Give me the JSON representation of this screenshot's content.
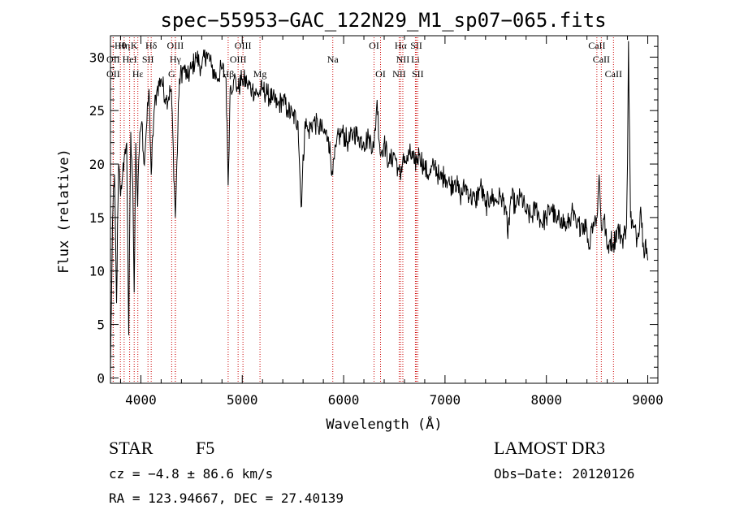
{
  "chart_data": {
    "type": "line",
    "title": "spec−55953−GAC_122N29_M1_sp07−065.fits",
    "xlabel": "Wavelength (Å)",
    "ylabel": "Flux (relative)",
    "xlim": [
      3700,
      9100
    ],
    "ylim": [
      -0.5,
      32
    ],
    "xticks": [
      4000,
      5000,
      6000,
      7000,
      8000,
      9000
    ],
    "yticks": [
      0,
      5,
      10,
      15,
      20,
      25,
      30
    ],
    "minor_x_step": 200,
    "minor_y_step": 1,
    "spectrum": {
      "name": "flux",
      "color": "#000000",
      "x": [
        3700,
        3720,
        3740,
        3760,
        3780,
        3800,
        3820,
        3840,
        3860,
        3880,
        3900,
        3920,
        3934,
        3950,
        3968,
        3990,
        4010,
        4030,
        4060,
        4080,
        4102,
        4130,
        4160,
        4200,
        4250,
        4300,
        4340,
        4380,
        4420,
        4460,
        4500,
        4550,
        4600,
        4650,
        4700,
        4750,
        4800,
        4840,
        4861,
        4880,
        4920,
        4960,
        5000,
        5050,
        5100,
        5150,
        5200,
        5250,
        5300,
        5350,
        5400,
        5450,
        5500,
        5550,
        5580,
        5620,
        5650,
        5700,
        5750,
        5800,
        5850,
        5893,
        5930,
        5980,
        6050,
        6100,
        6150,
        6200,
        6250,
        6300,
        6330,
        6360,
        6400,
        6450,
        6500,
        6540,
        6563,
        6590,
        6620,
        6650,
        6700,
        6750,
        6800,
        6850,
        6900,
        6950,
        7000,
        7050,
        7100,
        7150,
        7200,
        7250,
        7300,
        7350,
        7400,
        7450,
        7500,
        7550,
        7600,
        7620,
        7650,
        7700,
        7750,
        7800,
        7850,
        7900,
        7950,
        8000,
        8050,
        8100,
        8150,
        8200,
        8250,
        8300,
        8350,
        8400,
        8420,
        8450,
        8500,
        8520,
        8542,
        8570,
        8600,
        8630,
        8662,
        8700,
        8750,
        8790,
        8800,
        8810,
        8830,
        8860,
        8900,
        8930,
        8960,
        8980,
        9000
      ],
      "y": [
        0.5,
        14.5,
        19,
        7,
        20,
        17,
        19,
        21,
        22,
        4,
        23,
        18,
        8,
        22,
        16,
        23,
        24,
        20,
        24,
        27,
        19,
        25,
        27,
        28,
        26,
        27,
        15,
        28,
        29,
        28,
        29,
        30,
        29,
        30.5,
        29,
        28,
        29,
        28,
        18,
        27,
        28,
        27,
        28,
        27.5,
        27,
        26.5,
        27,
        26.5,
        26,
        25.5,
        26,
        25,
        24.5,
        24,
        16,
        24,
        23,
        24,
        23.5,
        23,
        22.5,
        19,
        22,
        23,
        22,
        23,
        22.5,
        22,
        22.5,
        21.5,
        26,
        21,
        22,
        20,
        21,
        19.5,
        18.5,
        21,
        20,
        21,
        20,
        21,
        19.5,
        19,
        20,
        18.5,
        19,
        18,
        18.5,
        17,
        18,
        17,
        16.5,
        18,
        16,
        17,
        16.5,
        17,
        16,
        13,
        17,
        16,
        17,
        15.5,
        15,
        16,
        14.5,
        15,
        16,
        14.5,
        15,
        14,
        15.5,
        14,
        14.5,
        14,
        12,
        14.5,
        15,
        19,
        14,
        15,
        12,
        13,
        12.5,
        14,
        13,
        14,
        20,
        31.5,
        15,
        14,
        13,
        16,
        12,
        13,
        11
      ]
    },
    "line_markers": [
      {
        "label": "Hθ",
        "x": 3798,
        "row": 0
      },
      {
        "label": "Hη",
        "x": 3835,
        "row": 0
      },
      {
        "label": "K",
        "x": 3934,
        "row": 0
      },
      {
        "label": "Hδ",
        "x": 4102,
        "row": 0
      },
      {
        "label": "OIII",
        "x": 4340,
        "row": 0
      },
      {
        "label": "OIII",
        "x": 5007,
        "row": 0
      },
      {
        "label": "OI",
        "x": 6300,
        "row": 0
      },
      {
        "label": "Hα",
        "x": 6563,
        "row": 0
      },
      {
        "label": "SII",
        "x": 6717,
        "row": 0
      },
      {
        "label": "CaII",
        "x": 8498,
        "row": 0
      },
      {
        "label": "OII",
        "x": 3727,
        "row": 1
      },
      {
        "label": "HeI",
        "x": 3889,
        "row": 1
      },
      {
        "label": "SII",
        "x": 4070,
        "row": 1
      },
      {
        "label": "Hγ",
        "x": 4340,
        "row": 1
      },
      {
        "label": "OIII",
        "x": 4959,
        "row": 1
      },
      {
        "label": "Na",
        "x": 5893,
        "row": 1
      },
      {
        "label": "NII",
        "x": 6584,
        "row": 1
      },
      {
        "label": "Li",
        "x": 6708,
        "row": 1
      },
      {
        "label": "CaII",
        "x": 8542,
        "row": 1
      },
      {
        "label": "OII",
        "x": 3727,
        "row": 2
      },
      {
        "label": "Hε",
        "x": 3970,
        "row": 2
      },
      {
        "label": "G",
        "x": 4304,
        "row": 2
      },
      {
        "label": "Hβ",
        "x": 4861,
        "row": 2
      },
      {
        "label": "Mg",
        "x": 5175,
        "row": 2
      },
      {
        "label": "OI",
        "x": 6364,
        "row": 2
      },
      {
        "label": "NII",
        "x": 6548,
        "row": 2
      },
      {
        "label": "SII",
        "x": 6731,
        "row": 2
      },
      {
        "label": "CaII",
        "x": 8662,
        "row": 2
      }
    ]
  },
  "info": {
    "object_class": "STAR",
    "subclass": "F5",
    "survey": "LAMOST DR3",
    "redshift": "cz = −4.8 ± 86.6 km/s",
    "obs_date": "Obs−Date: 20120126",
    "coords": "RA = 123.94667, DEC =  27.40139"
  },
  "colors": {
    "axis": "#000000",
    "spectrum": "#000000",
    "marker_line": "#cc0000"
  }
}
